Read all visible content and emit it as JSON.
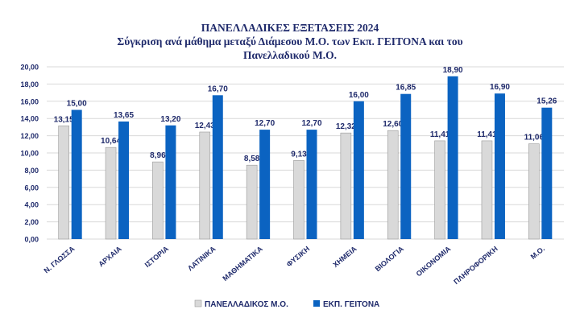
{
  "chart_data": {
    "type": "bar",
    "title": "ΠΑΝΕΛΛΑΔΙΚΕΣ ΕΞΕΤΑΣΕΙΣ 2024",
    "subtitle_line1": "Σύγκριση ανά μάθημα μεταξύ Διάμεσου Μ.Ο. των Εκπ. ΓΕΙΤΟΝΑ και του",
    "subtitle_line2": "Πανελλαδικού Μ.Ο.",
    "categories": [
      "Ν. ΓΛΩΣΣΑ",
      "ΑΡΧΑΙΑ",
      "ΙΣΤΟΡΙΑ",
      "ΛΑΤΙΝΙΚΑ",
      "ΜΑΘΗΜΑΤΙΚΑ",
      "ΦΥΣΙΚΗ",
      "ΧΗΜΕΙΑ",
      "ΒΙΟΛΟΓΙΑ",
      "ΟΙΚΟΝΟΜΙΑ",
      "ΠΛΗΡΟΦΟΡΙΚΗ",
      "Μ.Ο."
    ],
    "series": [
      {
        "name": "ΠΑΝΕΛΛΑΔΙΚΟΣ Μ.Ο.",
        "color": "#d9d9d9",
        "values": [
          13.15,
          10.64,
          8.96,
          12.43,
          8.58,
          9.13,
          12.32,
          12.6,
          11.41,
          11.41,
          11.06
        ],
        "labels": [
          "13,15",
          "10,64",
          "8,96",
          "12,43",
          "8,58",
          "9,13",
          "12,32",
          "12,60",
          "11,41",
          "11,41",
          "11,06"
        ]
      },
      {
        "name": "ΕΚΠ. ΓΕΙΤΟΝΑ",
        "color": "#0b63c1",
        "values": [
          15.0,
          13.65,
          13.2,
          16.7,
          12.7,
          12.7,
          16.0,
          16.85,
          18.9,
          16.9,
          15.26
        ],
        "labels": [
          "15,00",
          "13,65",
          "13,20",
          "16,70",
          "12,70",
          "12,70",
          "16,00",
          "16,85",
          "18,90",
          "16,90",
          "15,26"
        ]
      }
    ],
    "ylim": [
      0,
      20
    ],
    "yticks": [
      "0,00",
      "2,00",
      "4,00",
      "6,00",
      "8,00",
      "10,00",
      "12,00",
      "14,00",
      "16,00",
      "18,00",
      "20,00"
    ],
    "ytick_values": [
      0,
      2,
      4,
      6,
      8,
      10,
      12,
      14,
      16,
      18,
      20
    ],
    "grid": true,
    "legend": "bottom",
    "colors": {
      "text": "#1f2a6b",
      "grid": "#d9d9d9"
    }
  }
}
